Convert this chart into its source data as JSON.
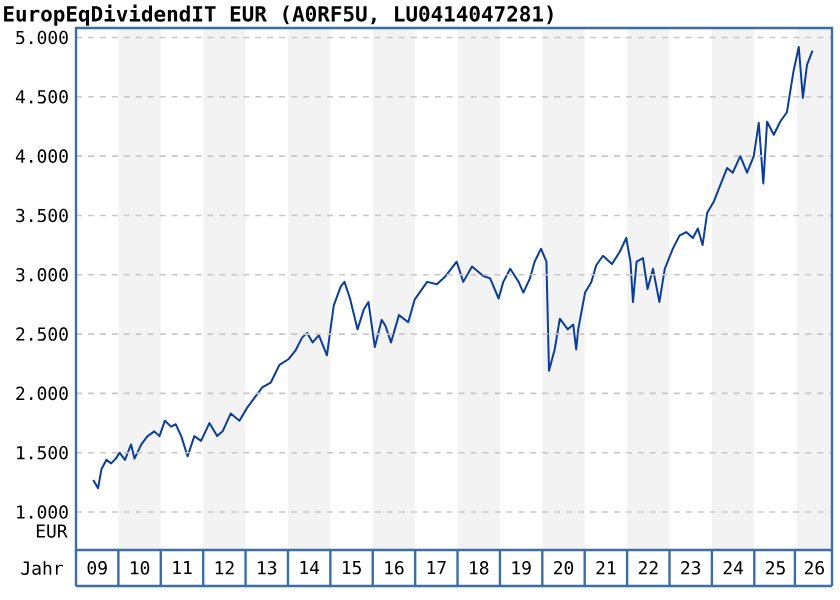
{
  "chart_data": {
    "type": "line",
    "title": "EuropEqDividendIT EUR (A0RF5U, LU0414047281)",
    "xlabel": "Jahr",
    "ylabel": "EUR",
    "xlim": [
      "2009-01",
      "2026-11"
    ],
    "ylim": [
      680,
      5080
    ],
    "xticks": [
      {
        "value": "2009-07",
        "label": "09"
      },
      {
        "value": "2010-07",
        "label": "10"
      },
      {
        "value": "2011-07",
        "label": "11"
      },
      {
        "value": "2012-07",
        "label": "12"
      },
      {
        "value": "2013-07",
        "label": "13"
      },
      {
        "value": "2014-07",
        "label": "14"
      },
      {
        "value": "2015-07",
        "label": "15"
      },
      {
        "value": "2016-07",
        "label": "16"
      },
      {
        "value": "2017-07",
        "label": "17"
      },
      {
        "value": "2018-07",
        "label": "18"
      },
      {
        "value": "2019-07",
        "label": "19"
      },
      {
        "value": "2020-07",
        "label": "20"
      },
      {
        "value": "2021-07",
        "label": "21"
      },
      {
        "value": "2022-07",
        "label": "22"
      },
      {
        "value": "2023-07",
        "label": "23"
      },
      {
        "value": "2024-07",
        "label": "24"
      },
      {
        "value": "2025-07",
        "label": "25"
      },
      {
        "value": "2026-06",
        "label": "26"
      }
    ],
    "yticks": [
      {
        "value": 1000,
        "label": "1.000"
      },
      {
        "value": 1500,
        "label": "1.500"
      },
      {
        "value": 2000,
        "label": "2.000"
      },
      {
        "value": 2500,
        "label": "2.500"
      },
      {
        "value": 3000,
        "label": "3.000"
      },
      {
        "value": 3500,
        "label": "3.500"
      },
      {
        "value": 4000,
        "label": "4.000"
      },
      {
        "value": 4500,
        "label": "4.500"
      },
      {
        "value": 5000,
        "label": "5.000"
      }
    ],
    "grid": "y",
    "line_style": "solid",
    "bands": [
      {
        "axis": "x",
        "from": "2010-01",
        "to": "2011-01",
        "color": "#f3f3f3"
      },
      {
        "axis": "x",
        "from": "2012-01",
        "to": "2013-01",
        "color": "#f3f3f3"
      },
      {
        "axis": "x",
        "from": "2014-01",
        "to": "2015-01",
        "color": "#f3f3f3"
      },
      {
        "axis": "x",
        "from": "2016-01",
        "to": "2017-01",
        "color": "#f3f3f3"
      },
      {
        "axis": "x",
        "from": "2018-01",
        "to": "2019-01",
        "color": "#f3f3f3"
      },
      {
        "axis": "x",
        "from": "2020-01",
        "to": "2021-01",
        "color": "#f3f3f3"
      },
      {
        "axis": "x",
        "from": "2022-01",
        "to": "2023-01",
        "color": "#f3f3f3"
      },
      {
        "axis": "x",
        "from": "2024-01",
        "to": "2025-01",
        "color": "#f3f3f3"
      },
      {
        "axis": "x",
        "from": "2026-01",
        "to": "2026-11",
        "color": "#f3f3f3"
      }
    ],
    "series": [
      {
        "color": "#0a3d9c",
        "x": [
          "2009-05-28",
          "2009-07-08",
          "2009-08-07",
          "2009-09-20",
          "2009-10-30",
          "2009-12-09",
          "2010-01-11",
          "2010-02-27",
          "2010-04-19",
          "2010-05-18",
          "2010-07-16",
          "2010-09-09",
          "2010-11-06",
          "2010-12-20",
          "2011-02-06",
          "2011-03-29",
          "2011-05-08",
          "2011-06-25",
          "2011-08-19",
          "2011-10-16",
          "2011-12-13",
          "2012-02-24",
          "2012-04-30",
          "2012-06-16",
          "2012-08-25",
          "2012-11-09",
          "2013-01-15",
          "2013-03-15",
          "2013-05-23",
          "2013-08-04",
          "2013-10-19",
          "2014-01-08",
          "2014-03-04",
          "2014-05-01",
          "2014-06-14",
          "2014-07-31",
          "2014-09-24",
          "2014-12-02",
          "2015-01-30",
          "2015-03-29",
          "2015-05-01",
          "2015-06-18",
          "2015-08-22",
          "2015-10-16",
          "2015-11-25",
          "2016-01-19",
          "2016-03-17",
          "2016-04-19",
          "2016-06-06",
          "2016-08-14",
          "2016-11-02",
          "2016-12-27",
          "2017-04-13",
          "2017-07-06",
          "2017-09-21",
          "2017-12-24",
          "2018-02-20",
          "2018-05-04",
          "2018-08-10",
          "2018-10-08",
          "2018-12-20",
          "2019-01-30",
          "2019-03-29",
          "2019-06-10",
          "2019-07-20",
          "2019-09-16",
          "2019-10-26",
          "2019-12-20",
          "2020-02-06",
          "2020-02-28",
          "2020-04-16",
          "2020-05-30",
          "2020-08-07",
          "2020-09-24",
          "2020-10-19",
          "2020-11-06",
          "2021-01-04",
          "2021-02-28",
          "2021-04-09",
          "2021-06-06",
          "2021-08-22",
          "2021-10-27",
          "2021-12-24",
          "2022-01-30",
          "2022-02-21",
          "2022-03-22",
          "2022-05-16",
          "2022-06-25",
          "2022-08-11",
          "2022-10-05",
          "2022-11-21",
          "2023-01-30",
          "2023-03-26",
          "2023-05-23",
          "2023-07-20",
          "2023-09-02",
          "2023-10-12",
          "2023-11-21",
          "2024-01-19",
          "2024-03-14",
          "2024-05-11",
          "2024-06-28",
          "2024-09-02",
          "2024-10-30",
          "2024-12-27",
          "2025-02-09",
          "2025-03-18",
          "2025-04-20",
          "2025-06-17",
          "2025-08-11",
          "2025-10-08",
          "2025-12-05",
          "2026-01-19",
          "2026-02-24",
          "2026-03-29",
          "2026-05-16"
        ],
        "values": [
          1270,
          1200,
          1360,
          1440,
          1410,
          1450,
          1500,
          1440,
          1570,
          1450,
          1570,
          1640,
          1680,
          1640,
          1770,
          1720,
          1740,
          1640,
          1470,
          1640,
          1600,
          1750,
          1640,
          1680,
          1830,
          1770,
          1880,
          1960,
          2050,
          2090,
          2240,
          2290,
          2360,
          2470,
          2510,
          2430,
          2490,
          2320,
          2740,
          2900,
          2940,
          2800,
          2540,
          2710,
          2770,
          2390,
          2620,
          2570,
          2430,
          2660,
          2600,
          2790,
          2940,
          2920,
          2990,
          3110,
          2940,
          3070,
          2990,
          2970,
          2800,
          2940,
          3050,
          2940,
          2850,
          2970,
          3110,
          3220,
          3110,
          2190,
          2370,
          2630,
          2540,
          2580,
          2370,
          2540,
          2850,
          2940,
          3080,
          3160,
          3090,
          3190,
          3310,
          3110,
          2770,
          3110,
          3140,
          2880,
          3050,
          2770,
          3050,
          3220,
          3330,
          3360,
          3310,
          3390,
          3250,
          3520,
          3620,
          3760,
          3900,
          3860,
          4000,
          3860,
          4000,
          4280,
          3770,
          4290,
          4180,
          4290,
          4370,
          4720,
          4920,
          4490,
          4770,
          4890
        ]
      }
    ]
  }
}
